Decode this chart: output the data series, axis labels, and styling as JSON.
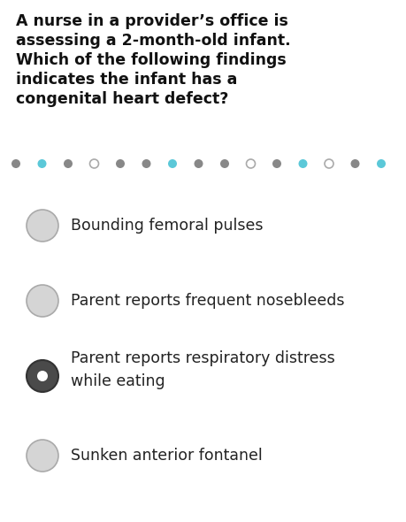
{
  "background_color": "#ffffff",
  "question_lines": [
    "A nurse in a provider’s office is",
    "assessing a 2-month-old infant.",
    "Which of the following findings",
    "indicates the infant has a",
    "congenital heart defect?"
  ],
  "question_fontsize": 12.5,
  "dots": {
    "colors": [
      "#888888",
      "#5bc8d8",
      "#888888",
      "#cccccc",
      "#888888",
      "#888888",
      "#5bc8d8",
      "#888888",
      "#888888",
      "#cccccc",
      "#888888",
      "#5bc8d8",
      "#cccccc",
      "#888888",
      "#5bc8d8"
    ],
    "hollow": [
      false,
      false,
      false,
      true,
      false,
      false,
      false,
      false,
      false,
      true,
      false,
      false,
      true,
      false,
      false
    ]
  },
  "options": [
    {
      "text": "Bounding femoral pulses",
      "multiline": false,
      "selected": false
    },
    {
      "text": "Parent reports frequent nosebleeds",
      "multiline": false,
      "selected": false
    },
    {
      "text": "Parent reports respiratory distress\nwhile eating",
      "multiline": true,
      "selected": true
    },
    {
      "text": "Sunken anterior fontanel",
      "multiline": false,
      "selected": false
    }
  ],
  "unselected_fill": "#d5d5d5",
  "unselected_edge": "#aaaaaa",
  "selected_outer_fill": "#4a4a4a",
  "selected_outer_edge": "#333333",
  "selected_inner_color": "#ffffff",
  "text_color": "#222222",
  "option_fontsize": 12.5
}
